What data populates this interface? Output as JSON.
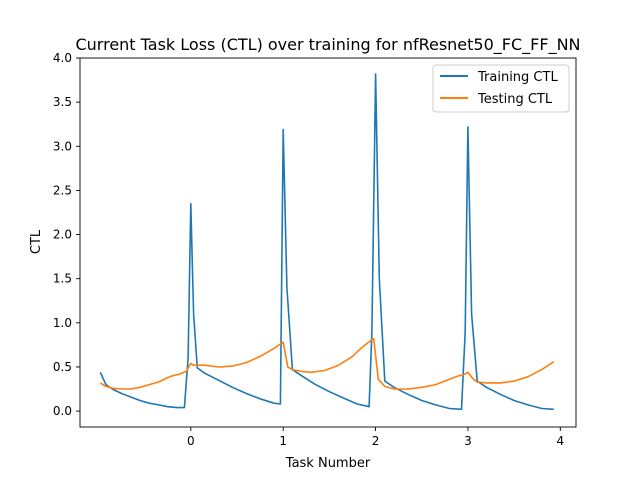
{
  "chart_data": {
    "type": "line",
    "title": "Current Task Loss (CTL) over training for nfResnet50_FC_FF_NN",
    "xlabel": "Task Number",
    "ylabel": "CTL",
    "xlim": [
      -1.2,
      4.17
    ],
    "ylim": [
      -0.18,
      4.0
    ],
    "xticks": [
      0,
      1,
      2,
      3,
      4
    ],
    "xtick_labels": [
      "0",
      "1",
      "2",
      "3",
      "4"
    ],
    "yticks": [
      0.0,
      0.5,
      1.0,
      1.5,
      2.0,
      2.5,
      3.0,
      3.5,
      4.0
    ],
    "ytick_labels": [
      "0.0",
      "0.5",
      "1.0",
      "1.5",
      "2.0",
      "2.5",
      "3.0",
      "3.5",
      "4.0"
    ],
    "grid": false,
    "legend_position": "upper right",
    "series": [
      {
        "name": "Training CTL",
        "color": "#1f77b4",
        "x": [
          -0.98,
          -0.92,
          -0.85,
          -0.75,
          -0.65,
          -0.55,
          -0.45,
          -0.35,
          -0.25,
          -0.15,
          -0.07,
          -0.03,
          0.0,
          0.03,
          0.07,
          0.15,
          0.3,
          0.45,
          0.6,
          0.75,
          0.9,
          0.97,
          1.0,
          1.04,
          1.1,
          1.2,
          1.35,
          1.5,
          1.65,
          1.8,
          1.93,
          1.96,
          2.0,
          2.04,
          2.1,
          2.2,
          2.35,
          2.5,
          2.65,
          2.8,
          2.93,
          2.97,
          3.0,
          3.04,
          3.1,
          3.2,
          3.35,
          3.5,
          3.65,
          3.8,
          3.93
        ],
        "y": [
          0.44,
          0.3,
          0.25,
          0.2,
          0.16,
          0.12,
          0.09,
          0.07,
          0.05,
          0.04,
          0.04,
          0.6,
          2.35,
          1.1,
          0.49,
          0.43,
          0.35,
          0.27,
          0.2,
          0.14,
          0.09,
          0.08,
          3.19,
          1.4,
          0.47,
          0.4,
          0.3,
          0.22,
          0.15,
          0.08,
          0.05,
          0.9,
          3.82,
          1.5,
          0.34,
          0.27,
          0.19,
          0.12,
          0.07,
          0.03,
          0.02,
          0.9,
          3.22,
          1.1,
          0.34,
          0.27,
          0.19,
          0.12,
          0.07,
          0.03,
          0.02
        ]
      },
      {
        "name": "Testing CTL",
        "color": "#ff7f0e",
        "x": [
          -0.98,
          -0.92,
          -0.85,
          -0.75,
          -0.65,
          -0.55,
          -0.45,
          -0.35,
          -0.25,
          -0.2,
          -0.12,
          -0.05,
          0.0,
          0.03,
          0.07,
          0.15,
          0.3,
          0.45,
          0.6,
          0.75,
          0.9,
          0.97,
          1.0,
          1.05,
          1.1,
          1.2,
          1.3,
          1.45,
          1.6,
          1.75,
          1.85,
          1.9,
          1.95,
          1.98,
          2.03,
          2.1,
          2.2,
          2.35,
          2.5,
          2.65,
          2.8,
          2.9,
          2.95,
          3.0,
          3.05,
          3.1,
          3.2,
          3.35,
          3.5,
          3.65,
          3.8,
          3.93
        ],
        "y": [
          0.32,
          0.28,
          0.26,
          0.25,
          0.25,
          0.27,
          0.3,
          0.33,
          0.38,
          0.4,
          0.42,
          0.45,
          0.54,
          0.52,
          0.52,
          0.52,
          0.5,
          0.51,
          0.55,
          0.62,
          0.71,
          0.76,
          0.78,
          0.5,
          0.47,
          0.45,
          0.44,
          0.46,
          0.52,
          0.62,
          0.72,
          0.76,
          0.8,
          0.82,
          0.36,
          0.28,
          0.25,
          0.25,
          0.27,
          0.3,
          0.36,
          0.4,
          0.41,
          0.44,
          0.37,
          0.33,
          0.32,
          0.32,
          0.34,
          0.39,
          0.47,
          0.56
        ]
      }
    ]
  }
}
